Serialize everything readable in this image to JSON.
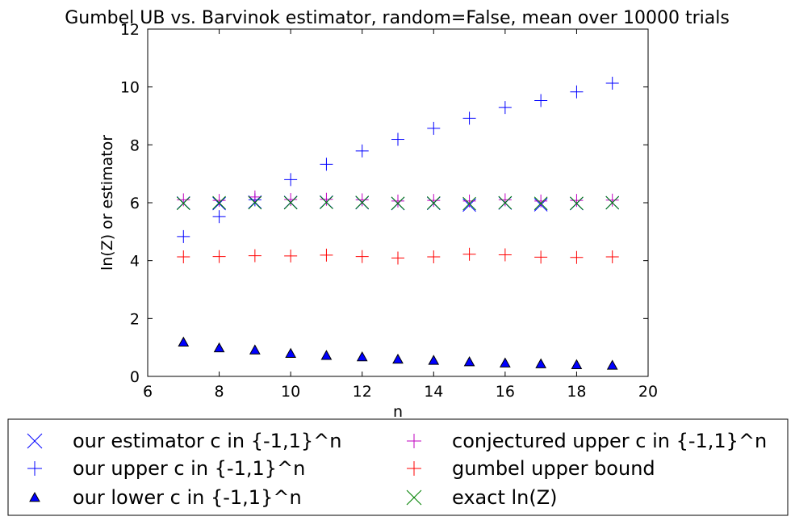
{
  "chart_data": {
    "type": "scatter",
    "title": "Gumbel UB vs. Barvinok estimator, random=False, mean over 10000 trials",
    "xlabel": "n",
    "ylabel": "ln(Z) or estimator",
    "xlim": [
      6,
      20
    ],
    "ylim": [
      0,
      12
    ],
    "xticks": [
      "6",
      "8",
      "10",
      "12",
      "14",
      "16",
      "18",
      "20"
    ],
    "yticks": [
      "0",
      "2",
      "4",
      "6",
      "8",
      "10",
      "12"
    ],
    "grid": false,
    "legend_position": "below",
    "x": [
      7,
      8,
      9,
      10,
      11,
      12,
      13,
      14,
      15,
      16,
      17,
      18,
      19
    ],
    "series": [
      {
        "name": "our estimator c in {-1,1}^n",
        "marker": "x",
        "color": "#0000ff",
        "values": [
          5.99,
          5.97,
          6.02,
          6.01,
          6.02,
          6.0,
          5.97,
          5.98,
          5.92,
          5.99,
          5.93,
          5.97,
          6.0
        ]
      },
      {
        "name": "our upper c in {-1,1}^n",
        "marker": "plus",
        "color": "#0000ff",
        "values": [
          4.83,
          5.52,
          6.1,
          6.8,
          7.33,
          7.79,
          8.19,
          8.57,
          8.92,
          9.29,
          9.53,
          9.83,
          10.13
        ]
      },
      {
        "name": "our lower c in {-1,1}^n",
        "marker": "triangle",
        "color": "#0000ff",
        "values": [
          1.18,
          0.98,
          0.91,
          0.79,
          0.72,
          0.67,
          0.59,
          0.55,
          0.5,
          0.46,
          0.43,
          0.4,
          0.38
        ]
      },
      {
        "name": "conjectured upper c in {-1,1}^n",
        "marker": "plus",
        "color": "#bf00bf",
        "values": [
          6.1,
          6.08,
          6.2,
          6.11,
          6.12,
          6.1,
          6.06,
          6.08,
          6.06,
          6.1,
          6.06,
          6.08,
          6.09
        ]
      },
      {
        "name": "gumbel upper bound",
        "marker": "plus",
        "color": "#ff0000",
        "values": [
          4.13,
          4.14,
          4.17,
          4.16,
          4.19,
          4.14,
          4.09,
          4.13,
          4.22,
          4.2,
          4.12,
          4.11,
          4.13
        ]
      },
      {
        "name": "exact ln(Z)",
        "marker": "x",
        "color": "#008000",
        "values": [
          5.98,
          6.0,
          6.0,
          6.0,
          6.01,
          6.01,
          5.98,
          5.99,
          5.97,
          6.0,
          5.98,
          5.98,
          6.0
        ]
      }
    ]
  }
}
